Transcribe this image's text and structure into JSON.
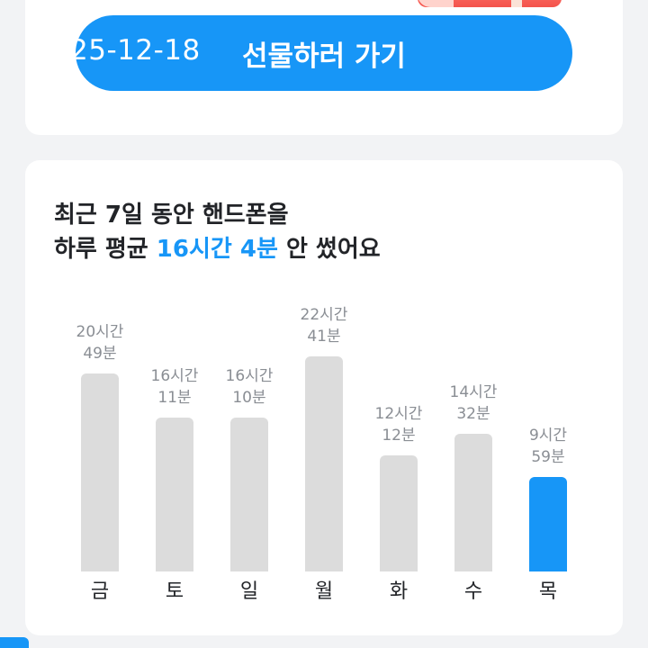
{
  "gift": {
    "button_label": "선물하러 가기",
    "date_overlay": "25-12-18"
  },
  "stats": {
    "headline_line1": "최근 7일 동안 핸드폰을",
    "headline_prefix": "하루 평균 ",
    "headline_accent": "16시간 4분",
    "headline_suffix": " 안 썼어요",
    "accent_color": "#1796f7",
    "bar_color": "#dcdcdc"
  },
  "chart_data": {
    "type": "bar",
    "categories": [
      "금",
      "토",
      "일",
      "월",
      "화",
      "수",
      "목"
    ],
    "values": [
      20.82,
      16.18,
      16.17,
      22.68,
      12.2,
      14.53,
      9.98
    ],
    "value_labels": [
      [
        "20시간",
        "49분"
      ],
      [
        "16시간",
        "11분"
      ],
      [
        "16시간",
        "10분"
      ],
      [
        "22시간",
        "41분"
      ],
      [
        "12시간",
        "12분"
      ],
      [
        "14시간",
        "32분"
      ],
      [
        "9시간",
        "59분"
      ]
    ],
    "highlight_index": 6,
    "ylim": [
      0,
      24
    ]
  }
}
